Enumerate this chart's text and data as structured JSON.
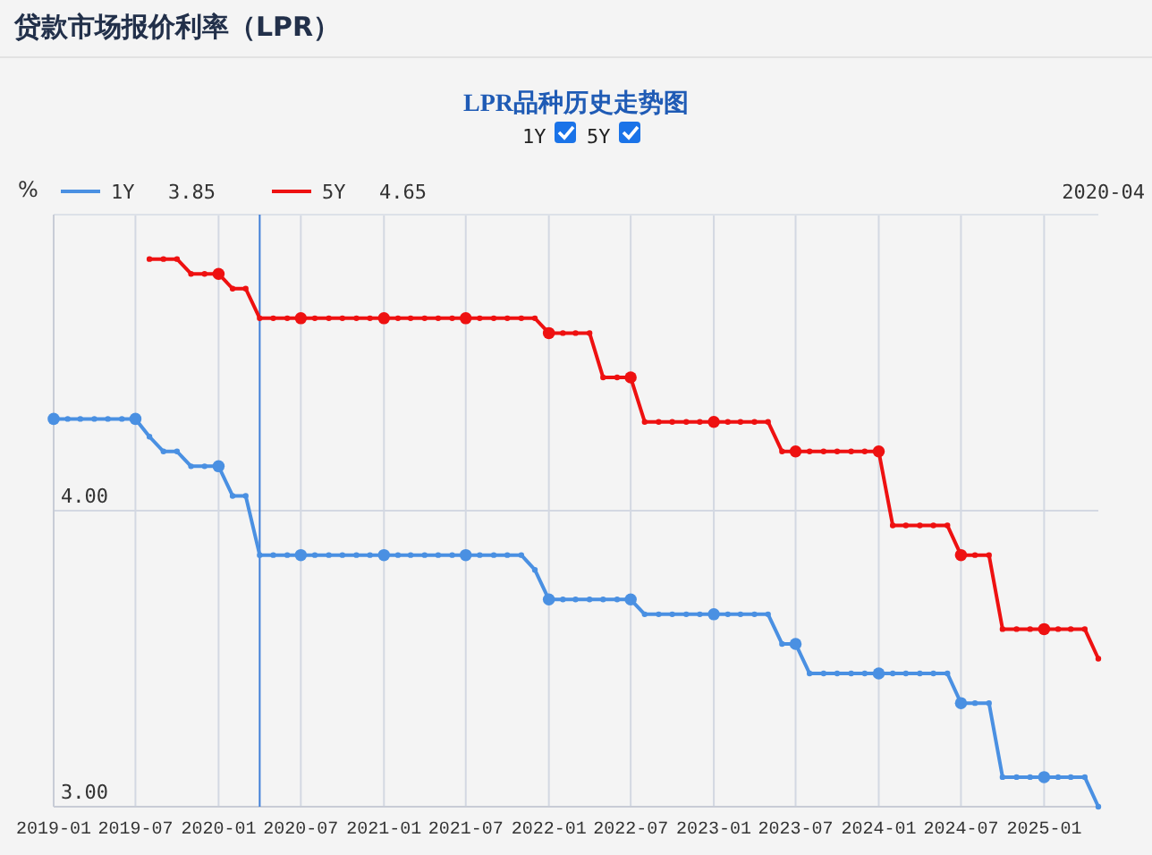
{
  "chart_data": {
    "type": "line",
    "title": "贷款市场报价利率（LPR）",
    "subtitle": "LPR品种历史走势图",
    "ylabel": "%",
    "x": [
      "2019-01",
      "2019-02",
      "2019-03",
      "2019-04",
      "2019-05",
      "2019-06",
      "2019-07",
      "2019-08",
      "2019-09",
      "2019-10",
      "2019-11",
      "2019-12",
      "2020-01",
      "2020-02",
      "2020-03",
      "2020-04",
      "2020-05",
      "2020-06",
      "2020-07",
      "2020-08",
      "2020-09",
      "2020-10",
      "2020-11",
      "2020-12",
      "2021-01",
      "2021-02",
      "2021-03",
      "2021-04",
      "2021-05",
      "2021-06",
      "2021-07",
      "2021-08",
      "2021-09",
      "2021-10",
      "2021-11",
      "2021-12",
      "2022-01",
      "2022-02",
      "2022-03",
      "2022-04",
      "2022-05",
      "2022-06",
      "2022-07",
      "2022-08",
      "2022-09",
      "2022-10",
      "2022-11",
      "2022-12",
      "2023-01",
      "2023-02",
      "2023-03",
      "2023-04",
      "2023-05",
      "2023-06",
      "2023-07",
      "2023-08",
      "2023-09",
      "2023-10",
      "2023-11",
      "2023-12",
      "2024-01",
      "2024-02",
      "2024-03",
      "2024-04",
      "2024-05",
      "2024-06",
      "2024-07",
      "2024-08",
      "2024-09",
      "2024-10",
      "2024-11",
      "2024-12",
      "2025-01",
      "2025-02",
      "2025-03",
      "2025-04",
      "2025-05"
    ],
    "series": [
      {
        "name": "1Y",
        "color": "#4a90e2",
        "values": [
          4.31,
          4.31,
          4.31,
          4.31,
          4.31,
          4.31,
          4.31,
          4.25,
          4.2,
          4.2,
          4.15,
          4.15,
          4.15,
          4.05,
          4.05,
          3.85,
          3.85,
          3.85,
          3.85,
          3.85,
          3.85,
          3.85,
          3.85,
          3.85,
          3.85,
          3.85,
          3.85,
          3.85,
          3.85,
          3.85,
          3.85,
          3.85,
          3.85,
          3.85,
          3.85,
          3.8,
          3.7,
          3.7,
          3.7,
          3.7,
          3.7,
          3.7,
          3.7,
          3.65,
          3.65,
          3.65,
          3.65,
          3.65,
          3.65,
          3.65,
          3.65,
          3.65,
          3.65,
          3.55,
          3.55,
          3.45,
          3.45,
          3.45,
          3.45,
          3.45,
          3.45,
          3.45,
          3.45,
          3.45,
          3.45,
          3.45,
          3.35,
          3.35,
          3.35,
          3.1,
          3.1,
          3.1,
          3.1,
          3.1,
          3.1,
          3.1,
          3.0
        ]
      },
      {
        "name": "5Y",
        "color": "#ee1111",
        "values": [
          null,
          null,
          null,
          null,
          null,
          null,
          null,
          4.85,
          4.85,
          4.85,
          4.8,
          4.8,
          4.8,
          4.75,
          4.75,
          4.65,
          4.65,
          4.65,
          4.65,
          4.65,
          4.65,
          4.65,
          4.65,
          4.65,
          4.65,
          4.65,
          4.65,
          4.65,
          4.65,
          4.65,
          4.65,
          4.65,
          4.65,
          4.65,
          4.65,
          4.65,
          4.6,
          4.6,
          4.6,
          4.6,
          4.45,
          4.45,
          4.45,
          4.3,
          4.3,
          4.3,
          4.3,
          4.3,
          4.3,
          4.3,
          4.3,
          4.3,
          4.3,
          4.2,
          4.2,
          4.2,
          4.2,
          4.2,
          4.2,
          4.2,
          4.2,
          3.95,
          3.95,
          3.95,
          3.95,
          3.95,
          3.85,
          3.85,
          3.85,
          3.6,
          3.6,
          3.6,
          3.6,
          3.6,
          3.6,
          3.6,
          3.5
        ]
      }
    ],
    "xlim": [
      "2019-01",
      "2025-05"
    ],
    "xticks": [
      "2019-01",
      "2019-07",
      "2020-01",
      "2020-07",
      "2021-01",
      "2021-07",
      "2022-01",
      "2022-07",
      "2023-01",
      "2023-07",
      "2024-01",
      "2024-07",
      "2025-01"
    ],
    "ylim": [
      3,
      5
    ],
    "yticks": [
      {
        "value": 3,
        "label": "3.00"
      },
      {
        "value": 4,
        "label": "4.00"
      }
    ],
    "grid": true,
    "legend": "top left",
    "marker": "circle",
    "line_style": "solid",
    "ref_lines": [
      {
        "axis": "x",
        "value": "2020-04",
        "color": "#3f7fd8"
      }
    ],
    "annotations": [
      "3.85",
      "4.65",
      "2020-04"
    ]
  }
}
